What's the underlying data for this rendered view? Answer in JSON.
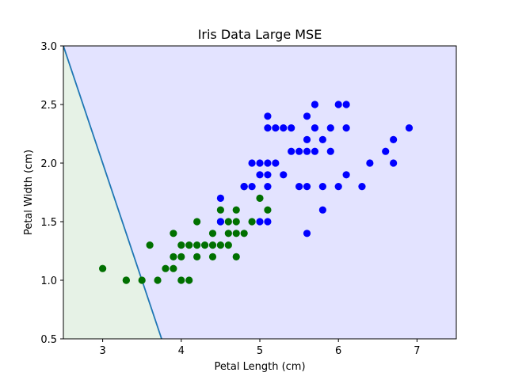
{
  "chart_data": {
    "type": "scatter",
    "title": "Iris Data Large MSE",
    "xlabel": "Petal Length (cm)",
    "ylabel": "Petal Width (cm)",
    "xlim": [
      2.5,
      7.5
    ],
    "ylim": [
      0.5,
      3.0
    ],
    "xticks": [
      "3",
      "4",
      "5",
      "6",
      "7"
    ],
    "yticks": [
      "0.5",
      "1.0",
      "1.5",
      "2.0",
      "2.5",
      "3.0"
    ],
    "grid": false,
    "decision_boundary": {
      "x": [
        2.5,
        3.75
      ],
      "y": [
        3.0,
        0.5
      ],
      "color": "#1f77b4"
    },
    "regions": [
      {
        "side": "left",
        "color": "#e6f2e6"
      },
      {
        "side": "right",
        "color": "#e3e3ff"
      }
    ],
    "series": [
      {
        "color": "#007000",
        "points": [
          [
            3.0,
            1.1
          ],
          [
            3.3,
            1.0
          ],
          [
            3.3,
            1.0
          ],
          [
            3.5,
            1.0
          ],
          [
            3.6,
            1.3
          ],
          [
            3.7,
            1.0
          ],
          [
            3.8,
            1.1
          ],
          [
            3.9,
            1.1
          ],
          [
            3.9,
            1.2
          ],
          [
            3.9,
            1.4
          ],
          [
            4.0,
            1.0
          ],
          [
            4.0,
            1.2
          ],
          [
            4.0,
            1.3
          ],
          [
            4.1,
            1.0
          ],
          [
            4.1,
            1.3
          ],
          [
            4.2,
            1.2
          ],
          [
            4.2,
            1.3
          ],
          [
            4.2,
            1.5
          ],
          [
            4.3,
            1.3
          ],
          [
            4.4,
            1.2
          ],
          [
            4.4,
            1.3
          ],
          [
            4.4,
            1.4
          ],
          [
            4.5,
            1.3
          ],
          [
            4.5,
            1.5
          ],
          [
            4.5,
            1.6
          ],
          [
            4.6,
            1.3
          ],
          [
            4.6,
            1.4
          ],
          [
            4.6,
            1.5
          ],
          [
            4.7,
            1.2
          ],
          [
            4.7,
            1.4
          ],
          [
            4.7,
            1.5
          ],
          [
            4.7,
            1.6
          ],
          [
            4.8,
            1.4
          ],
          [
            4.8,
            1.8
          ],
          [
            4.9,
            1.5
          ],
          [
            5.0,
            1.7
          ],
          [
            5.1,
            1.6
          ]
        ]
      },
      {
        "color": "#0000ff",
        "points": [
          [
            4.5,
            1.7
          ],
          [
            4.5,
            1.5
          ],
          [
            4.8,
            1.8
          ],
          [
            4.9,
            1.8
          ],
          [
            4.9,
            2.0
          ],
          [
            5.0,
            1.5
          ],
          [
            5.0,
            1.9
          ],
          [
            5.0,
            2.0
          ],
          [
            5.1,
            1.5
          ],
          [
            5.1,
            1.8
          ],
          [
            5.1,
            1.9
          ],
          [
            5.1,
            2.0
          ],
          [
            5.1,
            2.3
          ],
          [
            5.1,
            2.4
          ],
          [
            5.2,
            2.0
          ],
          [
            5.2,
            2.3
          ],
          [
            5.3,
            1.9
          ],
          [
            5.3,
            2.3
          ],
          [
            5.4,
            2.1
          ],
          [
            5.4,
            2.3
          ],
          [
            5.5,
            1.8
          ],
          [
            5.5,
            2.1
          ],
          [
            5.6,
            1.4
          ],
          [
            5.6,
            1.8
          ],
          [
            5.6,
            2.1
          ],
          [
            5.6,
            2.2
          ],
          [
            5.6,
            2.4
          ],
          [
            5.7,
            2.1
          ],
          [
            5.7,
            2.3
          ],
          [
            5.7,
            2.5
          ],
          [
            5.8,
            1.6
          ],
          [
            5.8,
            1.8
          ],
          [
            5.8,
            2.2
          ],
          [
            5.9,
            2.1
          ],
          [
            5.9,
            2.3
          ],
          [
            6.0,
            1.8
          ],
          [
            6.0,
            2.5
          ],
          [
            6.1,
            1.9
          ],
          [
            6.1,
            2.3
          ],
          [
            6.1,
            2.5
          ],
          [
            6.3,
            1.8
          ],
          [
            6.4,
            2.0
          ],
          [
            6.6,
            2.1
          ],
          [
            6.7,
            2.0
          ],
          [
            6.7,
            2.2
          ],
          [
            6.9,
            2.3
          ]
        ]
      }
    ]
  }
}
